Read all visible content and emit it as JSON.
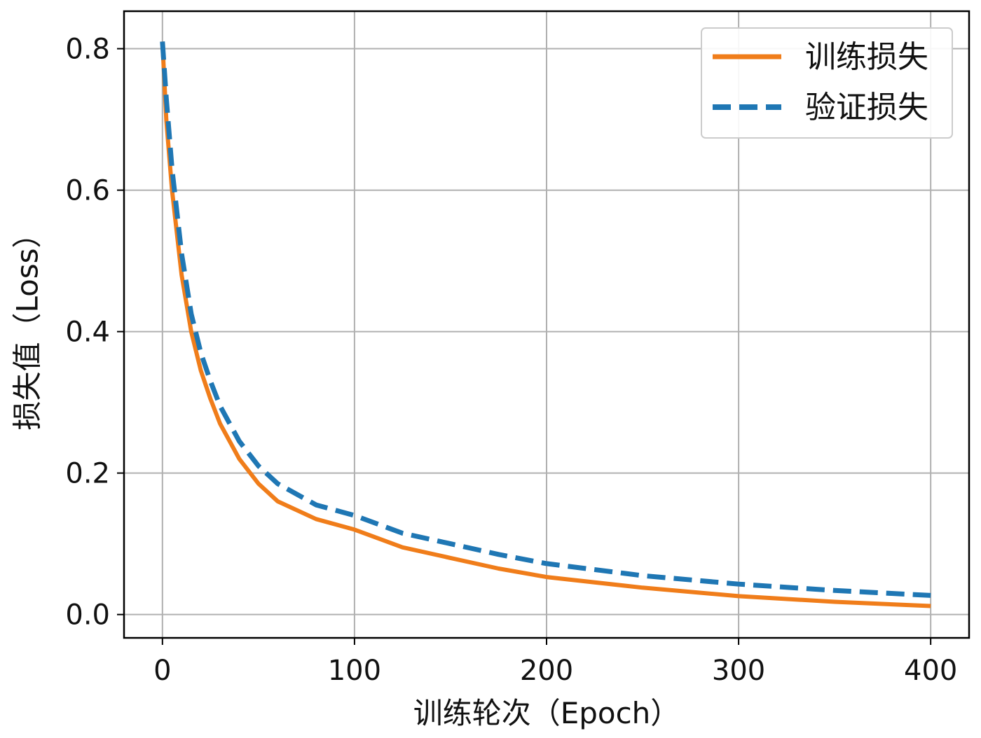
{
  "chart_data": {
    "type": "line",
    "xlabel": "训练轮次（Epoch）",
    "ylabel": "损失值（Loss）",
    "xlim": [
      -20,
      420
    ],
    "ylim": [
      -0.033,
      0.853
    ],
    "xticks": [
      0,
      100,
      200,
      300,
      400
    ],
    "yticks": [
      0.0,
      0.2,
      0.4,
      0.6,
      0.8
    ],
    "x_tick_labels": [
      "0",
      "100",
      "200",
      "300",
      "400"
    ],
    "y_tick_labels": [
      "0.0",
      "0.2",
      "0.4",
      "0.6",
      "0.8"
    ],
    "grid": true,
    "legend_position": "top-right",
    "series": [
      {
        "name": "训练损失",
        "color": "#f07d1a",
        "style": "solid",
        "x": [
          0,
          2,
          5,
          10,
          15,
          20,
          25,
          30,
          40,
          50,
          60,
          80,
          100,
          125,
          150,
          175,
          200,
          250,
          300,
          350,
          400
        ],
        "y": [
          0.81,
          0.7,
          0.6,
          0.48,
          0.4,
          0.345,
          0.305,
          0.27,
          0.22,
          0.185,
          0.16,
          0.135,
          0.12,
          0.095,
          0.08,
          0.065,
          0.053,
          0.038,
          0.026,
          0.018,
          0.012
        ]
      },
      {
        "name": "验证损失",
        "color": "#1f77b4",
        "style": "dashed",
        "x": [
          0,
          2,
          5,
          10,
          15,
          20,
          25,
          30,
          40,
          50,
          60,
          80,
          100,
          125,
          150,
          175,
          200,
          250,
          300,
          350,
          400
        ],
        "y": [
          0.81,
          0.73,
          0.63,
          0.51,
          0.425,
          0.37,
          0.33,
          0.295,
          0.245,
          0.21,
          0.185,
          0.155,
          0.14,
          0.115,
          0.1,
          0.085,
          0.072,
          0.055,
          0.043,
          0.034,
          0.027
        ]
      }
    ]
  }
}
